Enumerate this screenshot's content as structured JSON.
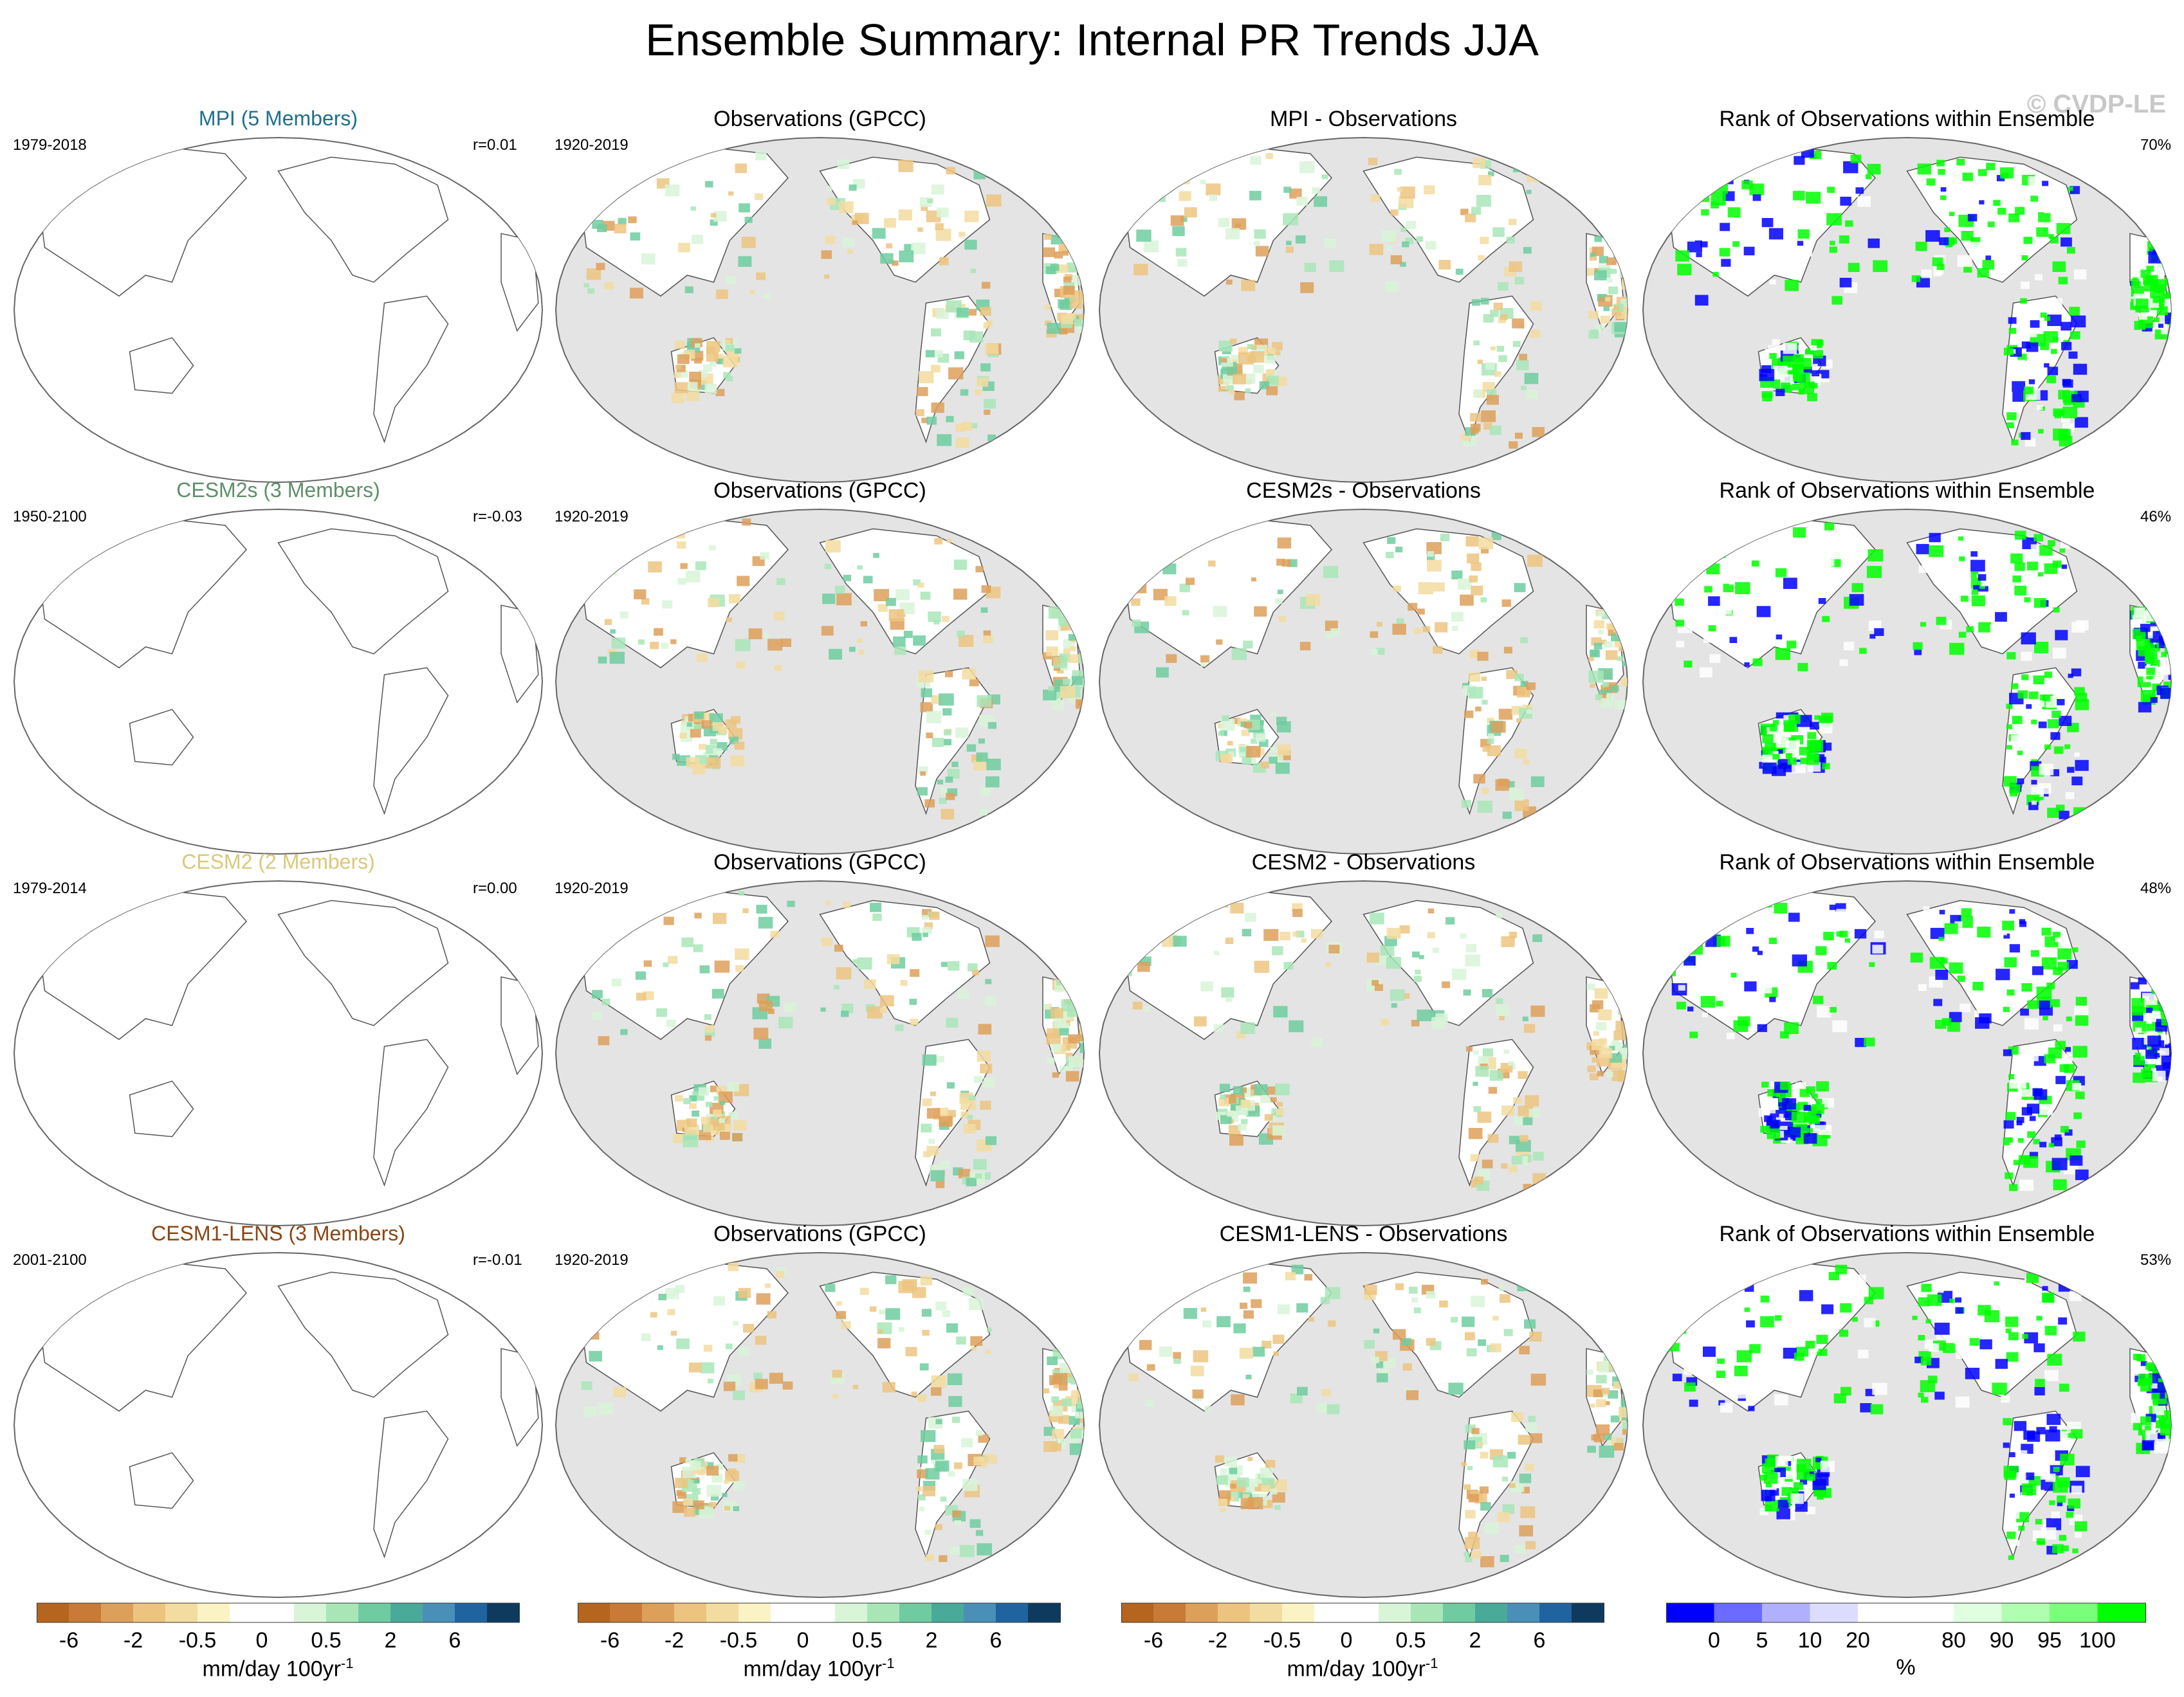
{
  "title": "Ensemble Summary: Internal PR Trends JJA",
  "watermark": "© CVDP-LE",
  "rows": [
    {
      "model_title": "MPI (5 Members)",
      "model_color": "#1f6f8b",
      "period": "1979-2018",
      "corr": "r=0.01",
      "obs_title": "Observations (GPCC)",
      "obs_period": "1920-2019",
      "diff_title": "MPI - Observations",
      "rank_title": "Rank of Observations within Ensemble",
      "rank_pct": "70%"
    },
    {
      "model_title": "CESM2s (3 Members)",
      "model_color": "#5e8f6a",
      "period": "1950-2100",
      "corr": "r=-0.03",
      "obs_title": "Observations (GPCC)",
      "obs_period": "1920-2019",
      "diff_title": "CESM2s - Observations",
      "rank_title": "Rank of Observations within Ensemble",
      "rank_pct": "46%"
    },
    {
      "model_title": "CESM2 (2 Members)",
      "model_color": "#d9c97a",
      "period": "1979-2014",
      "corr": "r=0.00",
      "obs_title": "Observations (GPCC)",
      "obs_period": "1920-2019",
      "diff_title": "CESM2 - Observations",
      "rank_title": "Rank of Observations within Ensemble",
      "rank_pct": "48%"
    },
    {
      "model_title": "CESM1-LENS (3 Members)",
      "model_color": "#8b4513",
      "period": "2001-2100",
      "corr": "r=-0.01",
      "obs_title": "Observations (GPCC)",
      "obs_period": "1920-2019",
      "diff_title": "CESM1-LENS - Observations",
      "rank_title": "Rank of Observations within Ensemble",
      "rank_pct": "53%"
    }
  ],
  "colorbar_trend": {
    "colors": [
      "#b5651d",
      "#c97a36",
      "#dda05a",
      "#ecc480",
      "#f3dca0",
      "#fbf3c4",
      "#ffffff",
      "#ffffff",
      "#d8f5d8",
      "#a8e6b8",
      "#6fcca0",
      "#4aaa9a",
      "#4a8fb8",
      "#1f64a0",
      "#0e3a5e"
    ],
    "labels": [
      "-6",
      "-2",
      "-0.5",
      "0",
      "0.5",
      "2",
      "6"
    ],
    "label_bounds": [
      1,
      3,
      5,
      7,
      9,
      11,
      13
    ],
    "units": "mm/day 100yr",
    "units_sup": "-1"
  },
  "colorbar_rank": {
    "colors": [
      "#0000ff",
      "#6b6bff",
      "#b0b0ff",
      "#dcdcff",
      "#ffffff",
      "#ffffff",
      "#e0ffe0",
      "#b0ffb0",
      "#7aff7a",
      "#00ff00"
    ],
    "labels": [
      "0",
      "5",
      "10",
      "20",
      "80",
      "90",
      "95",
      "100"
    ],
    "label_bounds": [
      1,
      2,
      3,
      4,
      6,
      7,
      8,
      9
    ],
    "units": "%"
  }
}
